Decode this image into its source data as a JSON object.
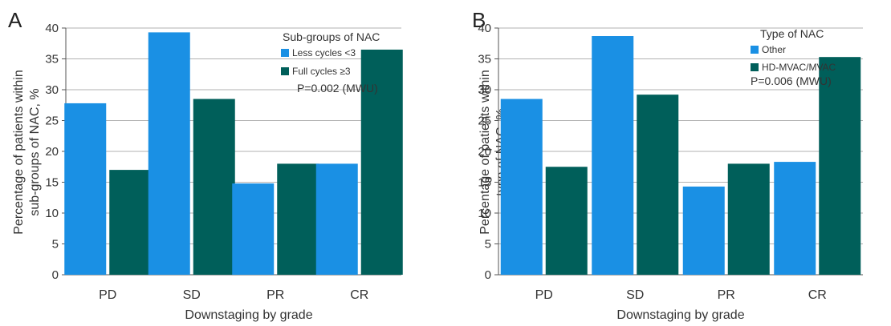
{
  "colors": {
    "light": "#1a90e4",
    "dark": "#005f5a",
    "axis": "#555555",
    "grid": "#999999"
  },
  "chart_data": [
    {
      "panel": "A",
      "type": "bar",
      "categories": [
        "PD",
        "SD",
        "PR",
        "CR"
      ],
      "series": [
        {
          "name": "Less cycles <3",
          "values": [
            27.8,
            39.3,
            14.8,
            18.0
          ]
        },
        {
          "name": "Full cycles ≥3",
          "values": [
            17.0,
            28.5,
            18.0,
            36.5
          ]
        }
      ],
      "title": "",
      "xlabel": "Downstaging by grade",
      "ylabel": "Percentage of patients within sub-groups of NAC, %",
      "ylabel_lines": [
        "Percentage of patients within",
        "sub-groups of NAC, %"
      ],
      "yticks": [
        0,
        5,
        10,
        15,
        20,
        25,
        30,
        35,
        40
      ],
      "ylim": [
        0,
        40
      ],
      "grid": true,
      "legend_title": "Sub-groups of NAC",
      "legend_placement": "top-right",
      "annotation": "P=0.002 (MWU)"
    },
    {
      "panel": "B",
      "type": "bar",
      "categories": [
        "PD",
        "SD",
        "PR",
        "CR"
      ],
      "series": [
        {
          "name": "Other",
          "values": [
            28.5,
            38.7,
            14.3,
            18.3
          ]
        },
        {
          "name": "HD-MVAC/MVAC",
          "values": [
            17.5,
            29.2,
            18.0,
            35.3
          ]
        }
      ],
      "title": "",
      "xlabel": "Downstaging by grade",
      "ylabel": "Percentage of patients within type of NAC, %",
      "ylabel_lines": [
        "Percentage of patients within",
        "type of NAC, %"
      ],
      "yticks": [
        0,
        5,
        10,
        15,
        20,
        25,
        30,
        35,
        40
      ],
      "ylim": [
        0,
        40
      ],
      "grid": true,
      "legend_title": "Type of NAC",
      "legend_placement": "top-right",
      "annotation": "P=0.006 (MWU)"
    }
  ]
}
